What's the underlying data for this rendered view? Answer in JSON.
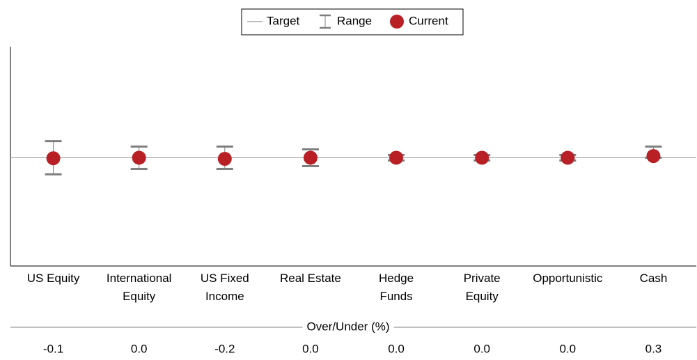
{
  "chart_data": {
    "type": "errorbar",
    "categories": [
      "US Equity",
      "International\nEquity",
      "US Fixed\nIncome",
      "Real Estate",
      "Hedge\nFunds",
      "Private\nEquity",
      "Opportunistic",
      "Cash"
    ],
    "series": [
      {
        "name": "Target",
        "color": "#a6a6a6",
        "value": 0
      },
      {
        "name": "Range",
        "color": "#7f7f7f",
        "low": [
          -3,
          -2,
          -2,
          -1.5,
          -0.5,
          -0.5,
          -0.5,
          0
        ],
        "high": [
          3,
          2,
          2,
          1.5,
          0.5,
          0.5,
          0.5,
          2
        ]
      },
      {
        "name": "Current",
        "color": "#b82025",
        "values": [
          -0.1,
          0.0,
          -0.2,
          0.0,
          0.0,
          0.0,
          0.0,
          0.3
        ],
        "value_labels": [
          "-0.1",
          "0.0",
          "-0.2",
          "0.0",
          "0.0",
          "0.0",
          "0.0",
          "0.3"
        ]
      }
    ],
    "xlabel": "Over/Under (%)",
    "ylim": [
      -19.5,
      20
    ]
  }
}
